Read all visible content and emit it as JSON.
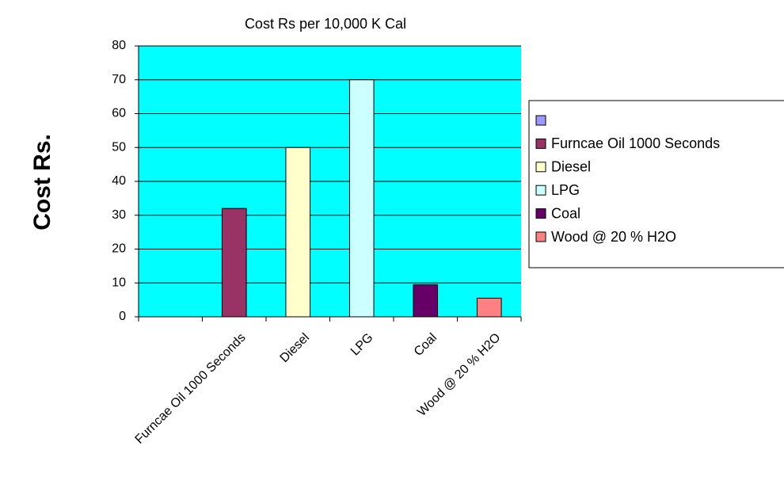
{
  "chart_data": {
    "type": "bar",
    "title": "Cost  Rs per 10,000 K Cal",
    "y_label": "Cost  Rs.",
    "categories": [
      null,
      "Furncae Oil 1000 Seconds",
      "Diesel",
      "LPG",
      "Coal",
      "Wood @ 20 % H2O"
    ],
    "values": [
      null,
      32,
      50,
      70,
      9.5,
      5.5
    ],
    "colors": [
      "#9999ff",
      "#993366",
      "#ffffcc",
      "#ccffff",
      "#660066",
      "#ff8080"
    ],
    "ylim": [
      0,
      80
    ],
    "yticks": [
      0,
      10,
      20,
      30,
      40,
      50,
      60,
      70,
      80
    ],
    "grid": true,
    "legend": "right"
  }
}
